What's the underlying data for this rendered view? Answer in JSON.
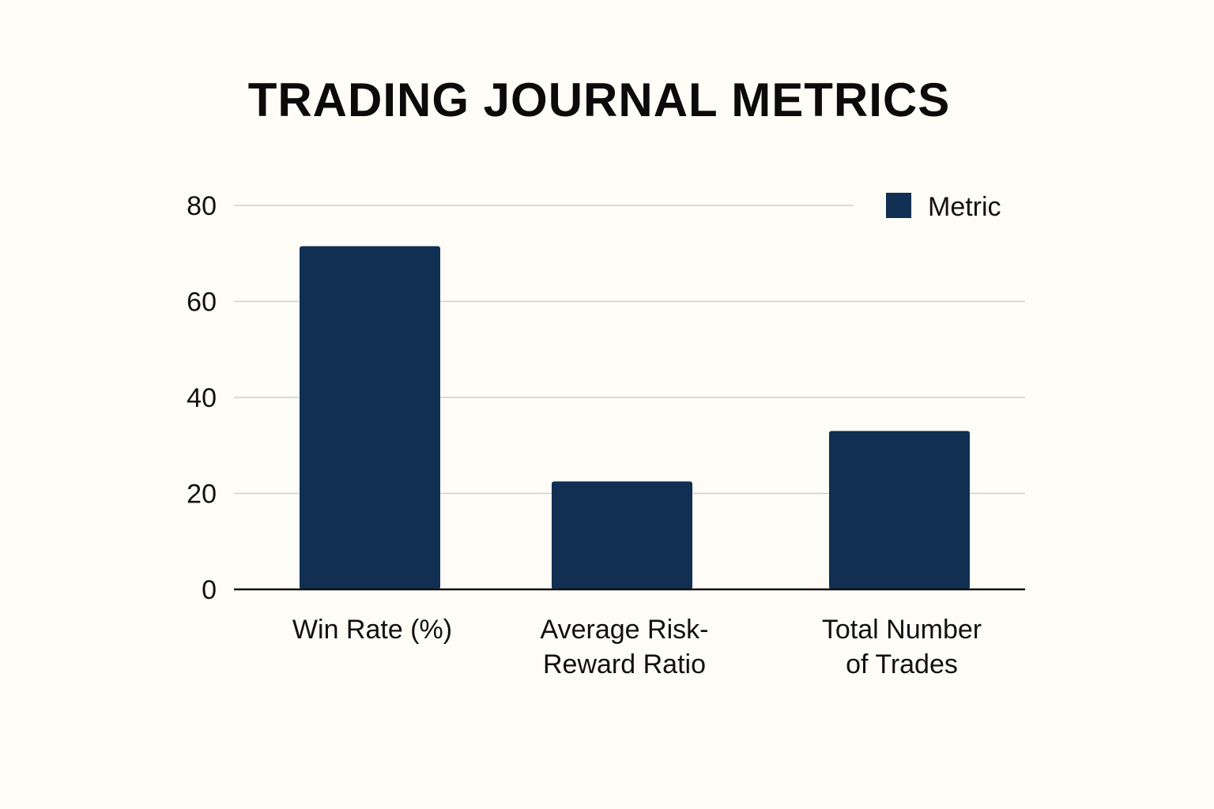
{
  "chart_data": {
    "type": "bar",
    "title": "TRADING JOURNAL METRICS",
    "categories": [
      "Win Rate (%)",
      "Average Risk-Reward Ratio",
      "Total Number of Trades"
    ],
    "category_lines": [
      [
        "Win Rate (%)"
      ],
      [
        "Average Risk-",
        "Reward Ratio"
      ],
      [
        "Total Number",
        "of Trades"
      ]
    ],
    "series": [
      {
        "name": "Metric",
        "values": [
          71.5,
          22.5,
          33
        ],
        "color": "#112f52"
      }
    ],
    "xlabel": "",
    "ylabel": "",
    "ylim": [
      0,
      80
    ],
    "yticks": [
      0,
      20,
      40,
      60,
      80
    ],
    "grid": true,
    "legend": "top-right"
  }
}
